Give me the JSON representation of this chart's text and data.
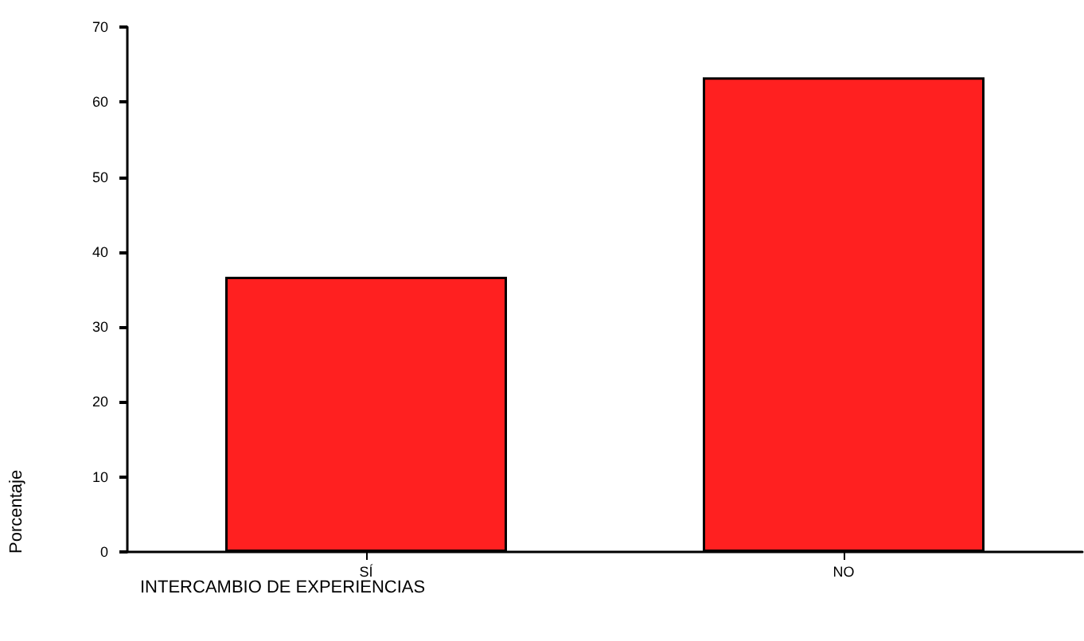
{
  "chart_data": {
    "type": "bar",
    "xlabel": "INTERCAMBIO DE EXPERIENCIAS",
    "ylabel": "Porcentaje",
    "categories": [
      "SÍ",
      "NO"
    ],
    "values": [
      36.7,
      63.3
    ],
    "color": "#ff2020",
    "ylim": [
      0,
      70
    ],
    "yticks": [
      0,
      10,
      20,
      30,
      40,
      50,
      60,
      70
    ],
    "grid": false
  }
}
